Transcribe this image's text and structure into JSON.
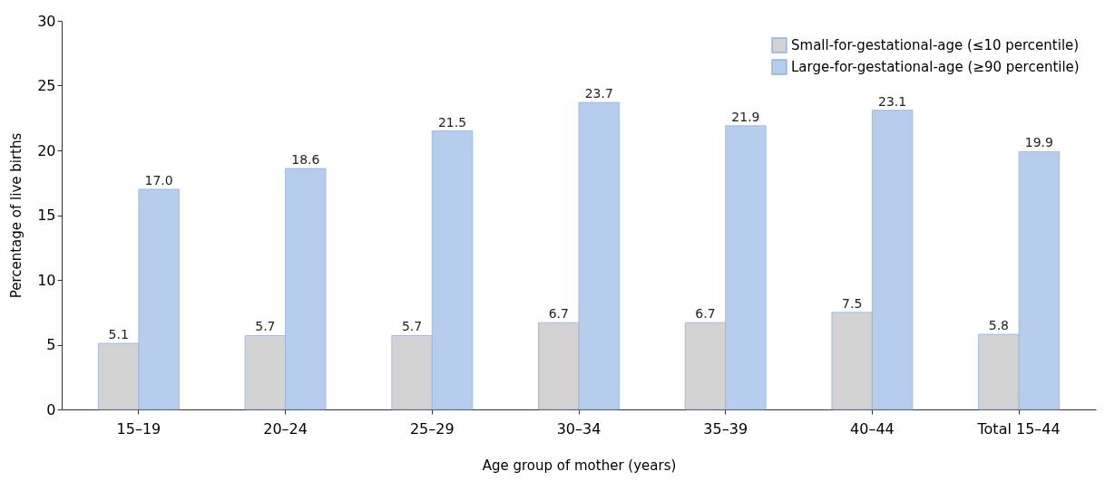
{
  "chart_data": {
    "type": "bar",
    "xlabel": "Age group of mother (years)",
    "ylabel": "Percentage of live births",
    "categories": [
      "15–19",
      "20–24",
      "25–29",
      "30–34",
      "35–39",
      "40–44",
      "Total 15–44"
    ],
    "series": [
      {
        "name": "Small-for-gestational-age (≤10 percentile)",
        "color": "#d3d3d3",
        "values": [
          5.1,
          5.7,
          5.7,
          6.7,
          6.7,
          7.5,
          5.8
        ],
        "value_labels": [
          "5.1",
          "5.7",
          "5.7",
          "6.7",
          "6.7",
          "7.5",
          "5.8"
        ]
      },
      {
        "name": "Large-for-gestational-age (≥90 percentile)",
        "color": "#b7cdee",
        "values": [
          17.0,
          18.6,
          21.5,
          23.7,
          21.9,
          23.1,
          19.9
        ],
        "value_labels": [
          "17.0",
          "18.6",
          "21.5",
          "23.7",
          "21.9",
          "23.1",
          "19.9"
        ]
      }
    ],
    "ylim": [
      0,
      30
    ],
    "yticks": [
      0,
      5,
      10,
      15,
      20,
      25,
      30
    ],
    "grid": false,
    "legend": "top right"
  }
}
